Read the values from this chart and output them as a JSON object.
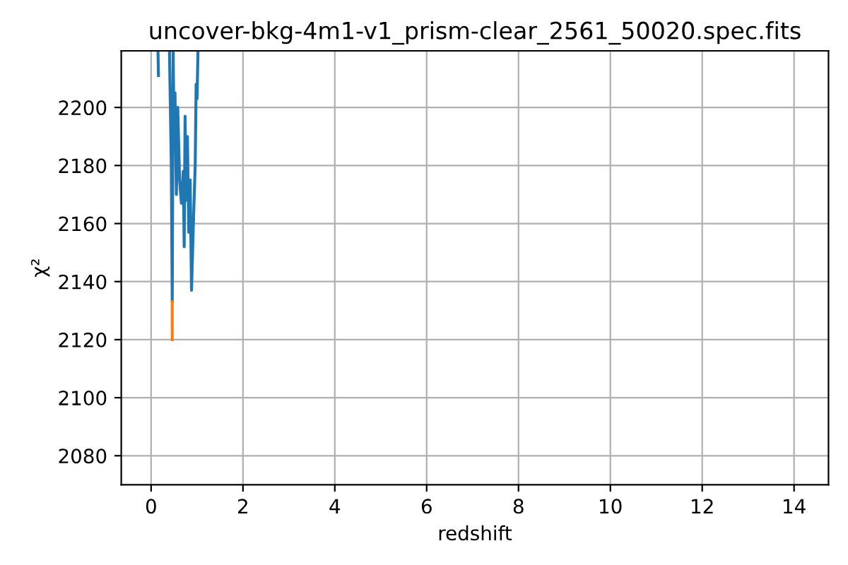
{
  "chart_data": {
    "type": "line",
    "title": "uncover-bkg-4m1-v1_prism-clear_2561_50020.spec.fits",
    "xlabel": "redshift",
    "ylabel": "χ²",
    "series": [
      {
        "color": "#1f77b4",
        "x": [
          0.15,
          0.16,
          0.3,
          0.4,
          0.44,
          0.46,
          0.48,
          0.5,
          0.52,
          0.55,
          0.58,
          0.62,
          0.66,
          0.7,
          0.72,
          0.74,
          0.76,
          0.79,
          0.82,
          0.85,
          0.88,
          0.92,
          0.96,
          0.98,
          1.0,
          1.02
        ],
        "values": [
          2219,
          2211,
          null,
          2219,
          2180,
          2133,
          2219,
          2190,
          2205,
          2170,
          2200,
          2175,
          2167,
          2178,
          2152,
          2197,
          2168,
          2190,
          2157,
          2175,
          2137,
          2160,
          2180,
          2208,
          2203,
          2219
        ]
      },
      {
        "color": "#ff7f0e",
        "x": [
          0.46,
          0.46
        ],
        "values": [
          2133,
          2120
        ]
      }
    ],
    "xlim": [
      -0.65,
      14.75
    ],
    "ylim": [
      2070,
      2219.5
    ],
    "xticks": [
      0,
      2,
      4,
      6,
      8,
      10,
      12,
      14
    ],
    "yticks": [
      2080,
      2100,
      2120,
      2140,
      2160,
      2180,
      2200
    ],
    "grid": true
  }
}
